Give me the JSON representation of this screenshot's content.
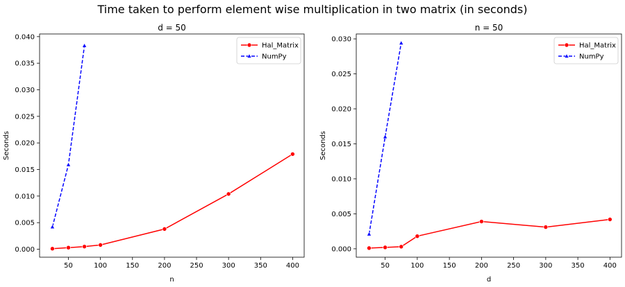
{
  "figure": {
    "title": "Time taken to perform element wise multiplication in two matrix (in seconds)"
  },
  "chart_data": [
    {
      "type": "line",
      "title": "d = 50",
      "xlabel": "n",
      "ylabel": "Seconds",
      "xlim": [
        5,
        418
      ],
      "ylim": [
        -0.0015,
        0.0405
      ],
      "xticks": [
        0,
        50,
        100,
        150,
        200,
        250,
        300,
        350,
        400
      ],
      "yticks": [
        0.0,
        0.005,
        0.01,
        0.015,
        0.02,
        0.025,
        0.03,
        0.035,
        0.04
      ],
      "ytick_labels": [
        "0.000",
        "0.005",
        "0.010",
        "0.015",
        "0.020",
        "0.025",
        "0.030",
        "0.035",
        "0.040"
      ],
      "legend_position": "upper right",
      "series": [
        {
          "name": "Hal_Matrix",
          "color": "#ff0000",
          "linestyle": "solid",
          "marker": "circle",
          "x": [
            25,
            50,
            75,
            100,
            200,
            300,
            400
          ],
          "y": [
            0.0001,
            0.0003,
            0.0005,
            0.0008,
            0.0038,
            0.0104,
            0.0179
          ]
        },
        {
          "name": "NumPy",
          "color": "#0000ff",
          "linestyle": "dashed",
          "marker": "triangle",
          "x": [
            25,
            50,
            75
          ],
          "y": [
            0.0042,
            0.0159,
            0.0383
          ]
        }
      ]
    },
    {
      "type": "line",
      "title": "n = 50",
      "xlabel": "d",
      "ylabel": "Seconds",
      "xlim": [
        5,
        418
      ],
      "ylim": [
        -0.0012,
        0.0307
      ],
      "xticks": [
        0,
        50,
        100,
        150,
        200,
        250,
        300,
        350,
        400
      ],
      "yticks": [
        0.0,
        0.005,
        0.01,
        0.015,
        0.02,
        0.025,
        0.03
      ],
      "ytick_labels": [
        "0.000",
        "0.005",
        "0.010",
        "0.015",
        "0.020",
        "0.025",
        "0.030"
      ],
      "legend_position": "upper right",
      "series": [
        {
          "name": "Hal_Matrix",
          "color": "#ff0000",
          "linestyle": "solid",
          "marker": "circle",
          "x": [
            25,
            50,
            75,
            100,
            200,
            300,
            400
          ],
          "y": [
            0.0001,
            0.0002,
            0.0003,
            0.0018,
            0.0039,
            0.0031,
            0.0042
          ]
        },
        {
          "name": "NumPy",
          "color": "#0000ff",
          "linestyle": "dashed",
          "marker": "triangle",
          "x": [
            25,
            50,
            75
          ],
          "y": [
            0.0021,
            0.016,
            0.0294
          ]
        }
      ]
    }
  ]
}
